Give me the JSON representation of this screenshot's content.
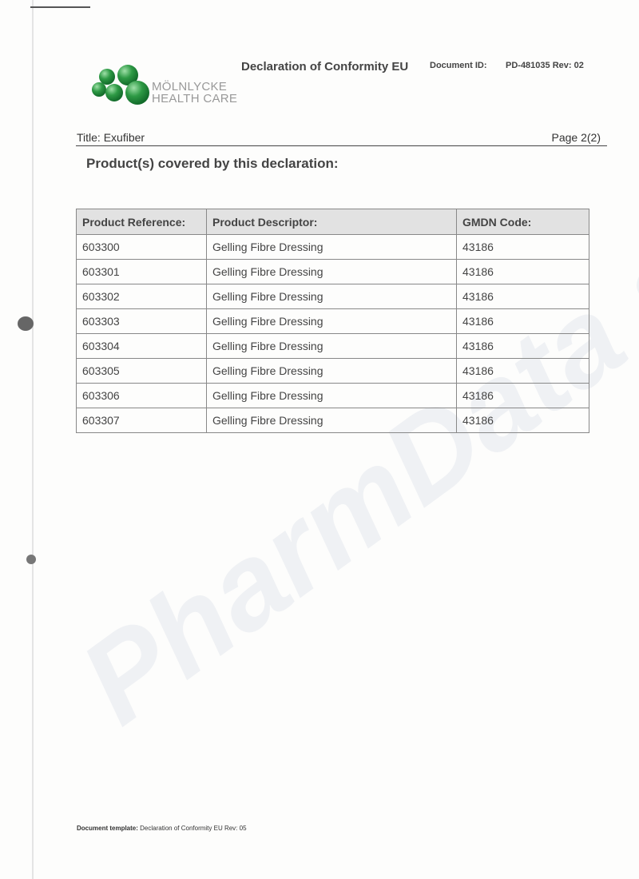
{
  "header": {
    "company_logo_text": [
      "MÖLNLYCKE",
      "HEALTH CARE"
    ],
    "brand_color": "#2e9a45",
    "doc_title": "Declaration of Conformity EU",
    "doc_id_label": "Document ID:",
    "doc_id": "PD-481035 Rev: 02",
    "title": "Title: Exufiber",
    "page": "Page 2(2)"
  },
  "heading": "Product(s) covered by this declaration:",
  "table": {
    "columns": [
      "Product Reference:",
      "Product Descriptor:",
      "GMDN Code:"
    ],
    "rows": [
      [
        "603300",
        "Gelling Fibre Dressing",
        "43186"
      ],
      [
        "603301",
        "Gelling Fibre Dressing",
        "43186"
      ],
      [
        "603302",
        "Gelling Fibre Dressing",
        "43186"
      ],
      [
        "603303",
        "Gelling Fibre Dressing",
        "43186"
      ],
      [
        "603304",
        "Gelling Fibre Dressing",
        "43186"
      ],
      [
        "603305",
        "Gelling Fibre Dressing",
        "43186"
      ],
      [
        "603306",
        "Gelling Fibre Dressing",
        "43186"
      ],
      [
        "603307",
        "Gelling Fibre Dressing",
        "43186"
      ]
    ]
  },
  "watermark": "PharmData s.r.o.",
  "footer": {
    "label": "Document template:",
    "value": "Declaration of Conformity EU Rev: 05"
  }
}
